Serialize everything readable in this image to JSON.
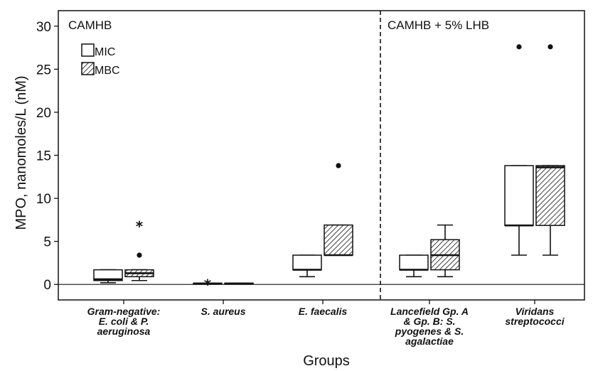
{
  "chart_data": {
    "type": "box",
    "ylabel": "MPO, nanomoles/L (nM)",
    "xlabel": "Groups",
    "ylim": [
      -1.8,
      31.8
    ],
    "yticks": [
      0,
      5,
      10,
      15,
      20,
      25,
      30
    ],
    "grid": false,
    "panels": [
      {
        "label": "CAMHB"
      },
      {
        "label": "CAMHB + 5% LHB"
      }
    ],
    "legend": {
      "placement": "top-left",
      "entries": [
        {
          "name": "MIC",
          "fill": "#ffffff"
        },
        {
          "name": "MBC",
          "fill": "hatched"
        }
      ]
    },
    "categories": [
      {
        "lines": [
          "Gram-negative:",
          "E. coli & P.",
          "aeruginosa"
        ]
      },
      {
        "lines": [
          "S. aureus"
        ]
      },
      {
        "lines": [
          "E. faecalis"
        ]
      },
      {
        "lines": [
          "Lancefield Gp. A",
          "& Gp. B:      S.",
          "pyogenes & S.",
          "agalactiae"
        ]
      },
      {
        "lines": [
          "Viridans",
          "streptococci"
        ]
      }
    ],
    "series": [
      {
        "name": "MIC",
        "boxes": [
          {
            "min": 0.2,
            "q1": 0.45,
            "median": 0.6,
            "q3": 1.7,
            "max": 1.7
          },
          {
            "min": 0.1,
            "q1": 0.1,
            "median": 0.1,
            "q3": 0.15,
            "max": 0.15,
            "outliers": [
              {
                "y": 0.15,
                "symbol": "star"
              }
            ]
          },
          {
            "min": 0.9,
            "q1": 1.7,
            "median": 1.7,
            "q3": 3.4,
            "max": 3.4
          },
          {
            "min": 0.9,
            "q1": 1.7,
            "median": 1.7,
            "q3": 3.4,
            "max": 3.4
          },
          {
            "min": 3.4,
            "q1": 6.85,
            "median": 6.85,
            "q3": 13.8,
            "max": 13.8,
            "outliers": [
              {
                "y": 27.6,
                "symbol": "dot"
              }
            ]
          }
        ]
      },
      {
        "name": "MBC",
        "boxes": [
          {
            "min": 0.45,
            "q1": 0.9,
            "median": 1.3,
            "q3": 1.7,
            "max": 1.7,
            "outliers": [
              {
                "y": 3.4,
                "symbol": "dot"
              },
              {
                "y": 6.9,
                "symbol": "star"
              }
            ]
          },
          {
            "min": 0.1,
            "q1": 0.1,
            "median": 0.1,
            "q3": 0.15,
            "max": 0.15
          },
          {
            "min": 3.4,
            "q1": 3.4,
            "median": 3.4,
            "q3": 6.9,
            "max": 6.9,
            "outliers": [
              {
                "y": 13.8,
                "symbol": "dot"
              }
            ]
          },
          {
            "min": 0.9,
            "q1": 1.7,
            "median": 3.4,
            "q3": 5.2,
            "max": 6.9
          },
          {
            "min": 3.4,
            "q1": 6.85,
            "median": 13.6,
            "q3": 13.8,
            "max": 13.8,
            "outliers": [
              {
                "y": 27.6,
                "symbol": "dot"
              }
            ]
          }
        ]
      }
    ]
  }
}
